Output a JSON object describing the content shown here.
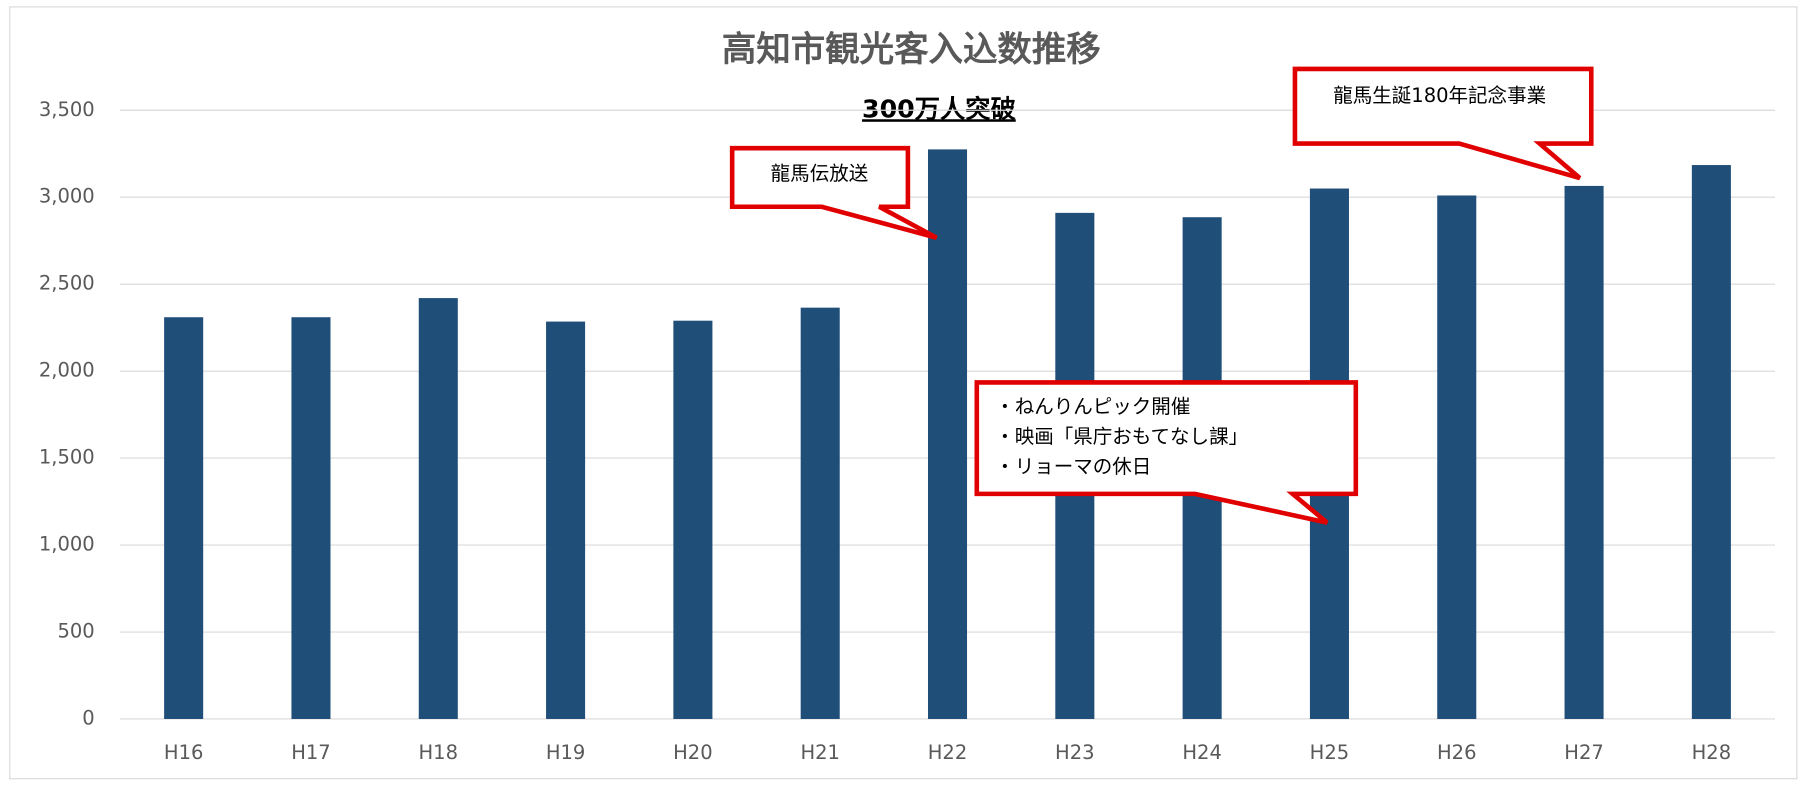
{
  "chart_data": {
    "type": "bar",
    "title": "高知市観光客入込数推移",
    "subtitle": "300万人突破",
    "categories": [
      "H16",
      "H17",
      "H18",
      "H19",
      "H20",
      "H21",
      "H22",
      "H23",
      "H24",
      "H25",
      "H26",
      "H27",
      "H28"
    ],
    "values": [
      2310,
      2310,
      2420,
      2285,
      2290,
      2365,
      3275,
      2910,
      2885,
      3050,
      3010,
      3065,
      3185
    ],
    "color": "#1f4e79",
    "ylim": [
      0,
      3500
    ],
    "yticks": [
      0,
      500,
      {
        "value": 1000,
        "label": "1,000"
      },
      {
        "value": 1500,
        "label": "1,500"
      },
      {
        "value": 2000,
        "label": "2,000"
      },
      {
        "value": 2500,
        "label": "2,500"
      },
      {
        "value": 3000,
        "label": "3,000"
      },
      {
        "value": 3500,
        "label": "3,500"
      }
    ],
    "grid": true,
    "annotations": [
      {
        "lines": [
          "龍馬伝放送"
        ]
      },
      {
        "lines": [
          "龍馬生誕180年記念事業"
        ]
      },
      {
        "lines": [
          "・ねんりんピック開催",
          "・映画「県庁おもてなし課」",
          "・リョーマの休日"
        ]
      }
    ]
  }
}
